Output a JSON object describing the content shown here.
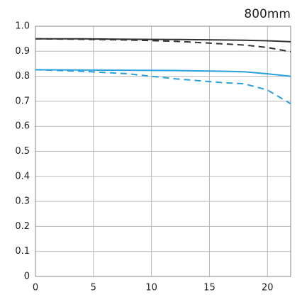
{
  "chart_data": {
    "type": "line",
    "title": "800mm",
    "x": [
      0,
      4,
      8,
      12,
      16,
      18,
      20,
      22
    ],
    "series": [
      {
        "color": "#333333",
        "linestyle": "solid",
        "values": [
          0.95,
          0.95,
          0.948,
          0.947,
          0.945,
          0.944,
          0.942,
          0.938
        ]
      },
      {
        "color": "#333333",
        "linestyle": "dashed",
        "values": [
          0.95,
          0.948,
          0.945,
          0.94,
          0.93,
          0.925,
          0.915,
          0.898
        ]
      },
      {
        "color": "#2aa0dc",
        "linestyle": "solid",
        "values": [
          0.826,
          0.825,
          0.824,
          0.823,
          0.82,
          0.818,
          0.81,
          0.8
        ]
      },
      {
        "color": "#2aa0dc",
        "linestyle": "dashed",
        "values": [
          0.826,
          0.82,
          0.81,
          0.79,
          0.775,
          0.77,
          0.745,
          0.69
        ]
      }
    ],
    "xlim": [
      0,
      22
    ],
    "xticks": [
      0,
      5,
      10,
      15,
      20
    ],
    "ylim": [
      0,
      1
    ],
    "yticks": [
      0,
      0.1,
      0.2,
      0.3,
      0.4,
      0.5,
      0.6,
      0.7,
      0.8,
      0.9,
      {
        "value": 1,
        "label": "1.0"
      }
    ],
    "grid": true
  }
}
